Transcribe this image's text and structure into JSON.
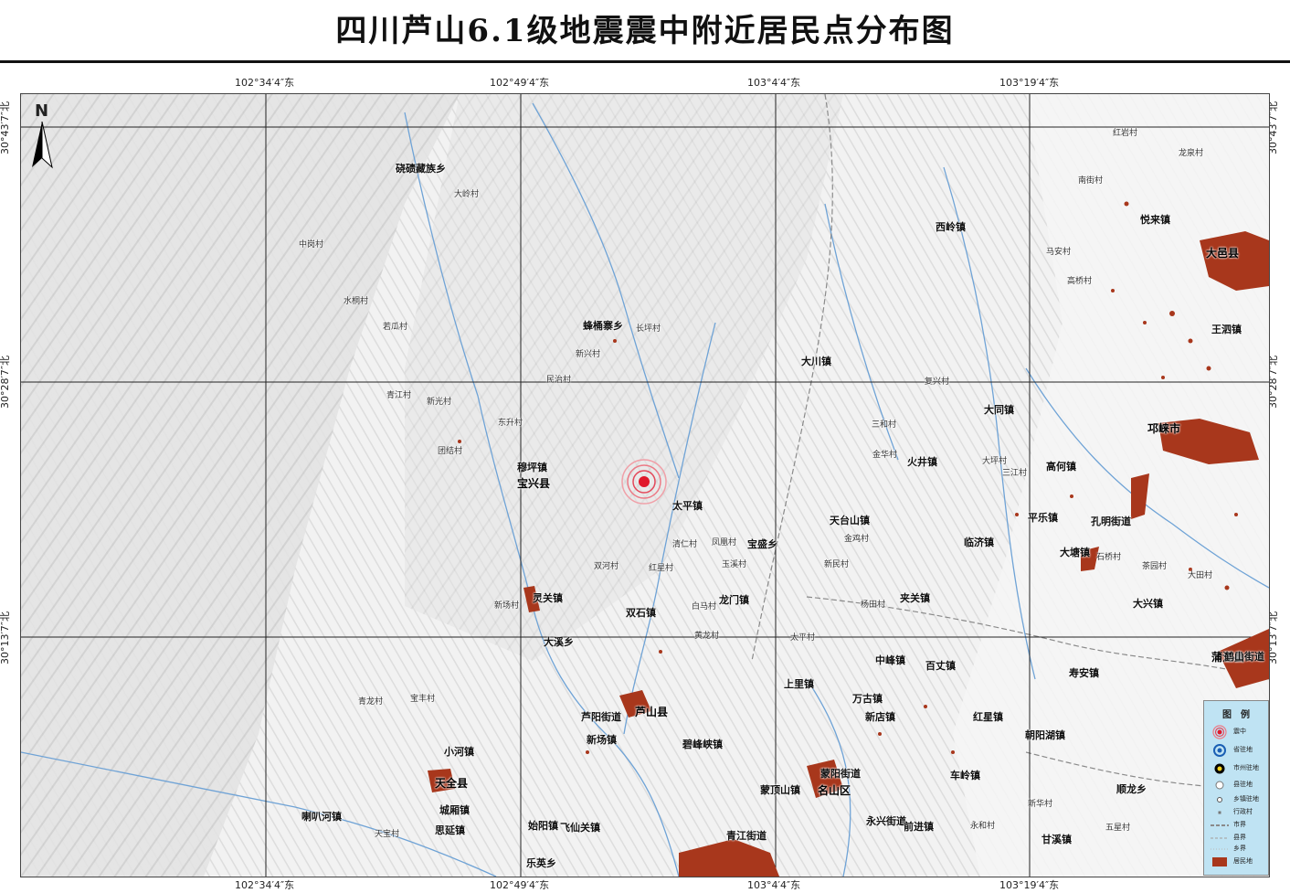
{
  "title": "四川芦山6.1级地震震中附近居民点分布图",
  "coords": {
    "lon": [
      "102°34′4″东",
      "102°49′4″东",
      "103°4′4″东",
      "103°19′4″东"
    ],
    "lat": [
      "30°43′7″北",
      "30°28′7″北",
      "30°13′7″北"
    ]
  },
  "north_label": "N",
  "places": {
    "counties": [
      "宝兴县",
      "芦山县",
      "天全县",
      "名山区",
      "邛崃市",
      "大邑县",
      "蒲江县"
    ],
    "towns": [
      "硗碛藏族乡",
      "蜂桶寨乡",
      "穆坪镇",
      "灵关镇",
      "大溪乡",
      "太平镇",
      "宝盛乡",
      "龙门镇",
      "双石镇",
      "大川镇",
      "飞仙关镇",
      "思延镇",
      "始阳镇",
      "小河镇",
      "城厢镇",
      "喇叭河镇",
      "乐英乡",
      "新场镇",
      "碧峰峡镇",
      "蒙顶山镇",
      "青江街道",
      "上里镇",
      "中峰镇",
      "万古镇",
      "新店镇",
      "百丈镇",
      "红星镇",
      "车岭镇",
      "永兴街道",
      "前进镇",
      "火井镇",
      "天台山镇",
      "夹关镇",
      "临济镇",
      "高何镇",
      "西岭镇",
      "大同镇",
      "孔明街道",
      "大塘镇",
      "平乐镇",
      "大兴镇",
      "悦来镇",
      "王泗镇",
      "寿安镇",
      "朝阳湖镇",
      "顺龙乡",
      "甘溪镇",
      "鹤山街道",
      "蒙阳街道",
      "芦阳街道"
    ],
    "villages": [
      "大岭村",
      "中岗村",
      "水桐村",
      "若瓜村",
      "青江村",
      "新光村",
      "东升村",
      "团结村",
      "民治村",
      "新兴村",
      "新场村",
      "长坪村",
      "双河村",
      "玉溪村",
      "凤凰村",
      "清仁村",
      "红星村",
      "白马村",
      "宝丰村",
      "青龙村",
      "黄龙村",
      "太平村",
      "金鸡村",
      "新民村",
      "三和村",
      "大坪村",
      "马安村",
      "高桥村",
      "杨田村",
      "复兴村",
      "金华村",
      "三江村",
      "红岩村",
      "石桥村",
      "永和村",
      "新华村",
      "五星村",
      "茶园村",
      "大田村",
      "龙泉村",
      "天宝村",
      "南街村"
    ]
  },
  "legend": {
    "title": "图　例",
    "items": [
      "震中",
      "省驻地",
      "市州驻地",
      "县驻地",
      "乡镇驻地",
      "行政村",
      "市界",
      "县界",
      "乡界",
      "居民地"
    ]
  },
  "colors": {
    "grid": "#222222",
    "river": "#6fa3d6",
    "settlement": "#a8371c",
    "epicenter": "#e0192b",
    "legend_bg": "#bfe3f3",
    "boundary": "#8a8a8a"
  },
  "icons": [
    "north-arrow-icon",
    "epicenter-icon",
    "settlement-patch"
  ]
}
